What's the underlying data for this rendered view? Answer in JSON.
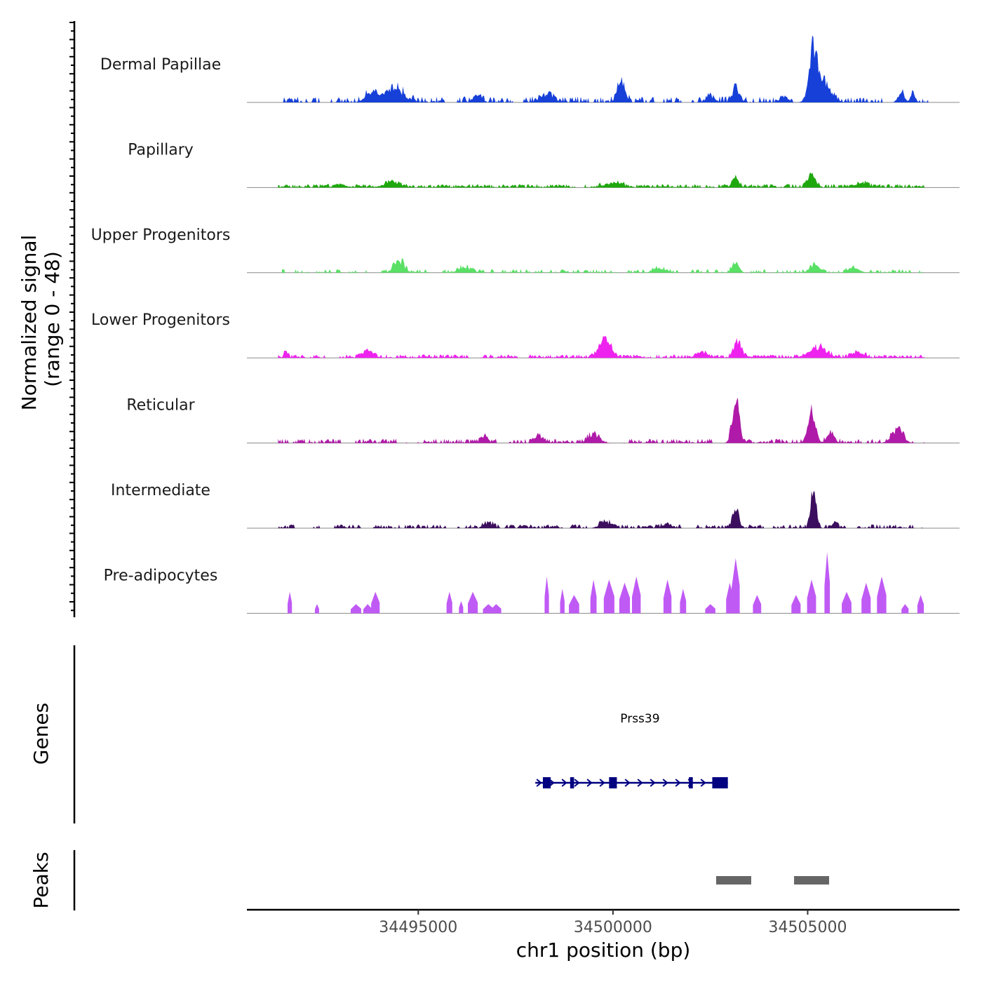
{
  "chart_data": {
    "type": "area",
    "title": "",
    "ylabel_line1": "Normalized signal",
    "ylabel_line2": "(range 0 - 48)",
    "y_range": [
      0,
      48
    ],
    "xlabel": "chr1 position (bp)",
    "x_range": [
      34490600,
      34508900
    ],
    "x_ticks": [
      34495000,
      34500000,
      34505000
    ],
    "x_tick_labels": [
      "34495000",
      "34500000",
      "34505000"
    ],
    "tracks": [
      {
        "name": "Dermal Papillae",
        "color": "#1740d8",
        "peaks": [
          [
            34505150,
            46,
            160
          ],
          [
            34505450,
            14,
            250
          ],
          [
            34500200,
            17,
            140
          ],
          [
            34503150,
            12,
            120
          ],
          [
            34494400,
            11,
            330
          ],
          [
            34493800,
            7,
            250
          ],
          [
            34496500,
            6,
            140
          ],
          [
            34498300,
            6,
            260
          ],
          [
            34507400,
            8,
            110
          ],
          [
            34507700,
            7,
            90
          ],
          [
            34502500,
            5,
            160
          ],
          [
            34504400,
            5,
            130
          ]
        ],
        "noise": 4,
        "noise_density": 0.65,
        "start": 34491500,
        "end": 34508100,
        "dense": true
      },
      {
        "name": "Papillary",
        "color": "#1fa80e",
        "peaks": [
          [
            34505100,
            10,
            140
          ],
          [
            34503150,
            7,
            120
          ],
          [
            34494300,
            4,
            300
          ],
          [
            34500000,
            4,
            300
          ],
          [
            34506400,
            4,
            200
          ],
          [
            34493000,
            3,
            200
          ]
        ],
        "noise": 2.4,
        "noise_density": 0.9,
        "start": 34491400,
        "end": 34508000,
        "dense": true
      },
      {
        "name": "Upper Progenitors",
        "color": "#59e065",
        "peaks": [
          [
            34494500,
            11,
            170
          ],
          [
            34503150,
            9,
            120
          ],
          [
            34505200,
            6,
            200
          ],
          [
            34496200,
            4,
            250
          ],
          [
            34501200,
            4,
            200
          ],
          [
            34506200,
            4,
            200
          ]
        ],
        "noise": 2.4,
        "noise_density": 0.55,
        "start": 34491500,
        "end": 34508000,
        "dense": true
      },
      {
        "name": "Lower Progenitors",
        "color": "#ee22ee",
        "peaks": [
          [
            34499800,
            16,
            200
          ],
          [
            34503200,
            14,
            140
          ],
          [
            34505300,
            9,
            260
          ],
          [
            34491600,
            6,
            60
          ],
          [
            34493700,
            5,
            200
          ],
          [
            34506300,
            4,
            200
          ],
          [
            34502300,
            4,
            200
          ]
        ],
        "noise": 2.4,
        "noise_density": 0.9,
        "start": 34491400,
        "end": 34508000,
        "dense": true
      },
      {
        "name": "Reticular",
        "color": "#b01aa8",
        "peaks": [
          [
            34503150,
            40,
            120
          ],
          [
            34505100,
            26,
            140
          ],
          [
            34505600,
            10,
            120
          ],
          [
            34507300,
            12,
            200
          ],
          [
            34498100,
            6,
            150
          ],
          [
            34496700,
            6,
            120
          ],
          [
            34499500,
            7,
            200
          ]
        ],
        "noise": 3,
        "noise_density": 0.7,
        "start": 34491400,
        "end": 34508000,
        "dense": true
      },
      {
        "name": "Intermediate",
        "color": "#3c0e5e",
        "peaks": [
          [
            34505150,
            31,
            100
          ],
          [
            34503150,
            16,
            120
          ],
          [
            34496800,
            5,
            150
          ],
          [
            34499800,
            5,
            200
          ],
          [
            34505700,
            4,
            100
          ],
          [
            34501400,
            4,
            150
          ]
        ],
        "noise": 2.6,
        "noise_density": 0.75,
        "start": 34491400,
        "end": 34508100,
        "dense": true
      },
      {
        "name": "Pre-adipocytes",
        "color": "#c05af5",
        "peaks": [],
        "noise": 0,
        "noise_density": 0,
        "start": 34491600,
        "end": 34508000,
        "dense": false,
        "spikes": [
          [
            34491700,
            14
          ],
          [
            34492400,
            6
          ],
          [
            34493400,
            6
          ],
          [
            34493700,
            6
          ],
          [
            34493900,
            14
          ],
          [
            34495800,
            14
          ],
          [
            34496100,
            8
          ],
          [
            34496400,
            14
          ],
          [
            34496800,
            6
          ],
          [
            34497000,
            6
          ],
          [
            34498300,
            24
          ],
          [
            34498700,
            16
          ],
          [
            34499000,
            12
          ],
          [
            34499500,
            22
          ],
          [
            34499900,
            22
          ],
          [
            34500300,
            20
          ],
          [
            34500600,
            24
          ],
          [
            34501400,
            22
          ],
          [
            34501800,
            16
          ],
          [
            34502500,
            6
          ],
          [
            34503000,
            20
          ],
          [
            34503150,
            36
          ],
          [
            34503700,
            12
          ],
          [
            34504700,
            12
          ],
          [
            34505100,
            22
          ],
          [
            34505500,
            40
          ],
          [
            34506000,
            14
          ],
          [
            34506500,
            20
          ],
          [
            34506900,
            24
          ],
          [
            34507500,
            6
          ],
          [
            34507900,
            12
          ]
        ]
      }
    ],
    "genes_label": "Genes",
    "gene": {
      "name": "Prss39",
      "start": 34498150,
      "end": 34502950,
      "strand": "+",
      "exons": [
        [
          34498200,
          34498400
        ],
        [
          34498900,
          34499000
        ],
        [
          34499900,
          34500100
        ],
        [
          34501950,
          34502050
        ],
        [
          34502550,
          34502950
        ]
      ]
    },
    "gene_color": "#000080",
    "peaks_label": "Peaks",
    "peak_regions": [
      [
        34502650,
        34503550
      ],
      [
        34504650,
        34505550
      ]
    ],
    "peak_color": "#666666"
  }
}
